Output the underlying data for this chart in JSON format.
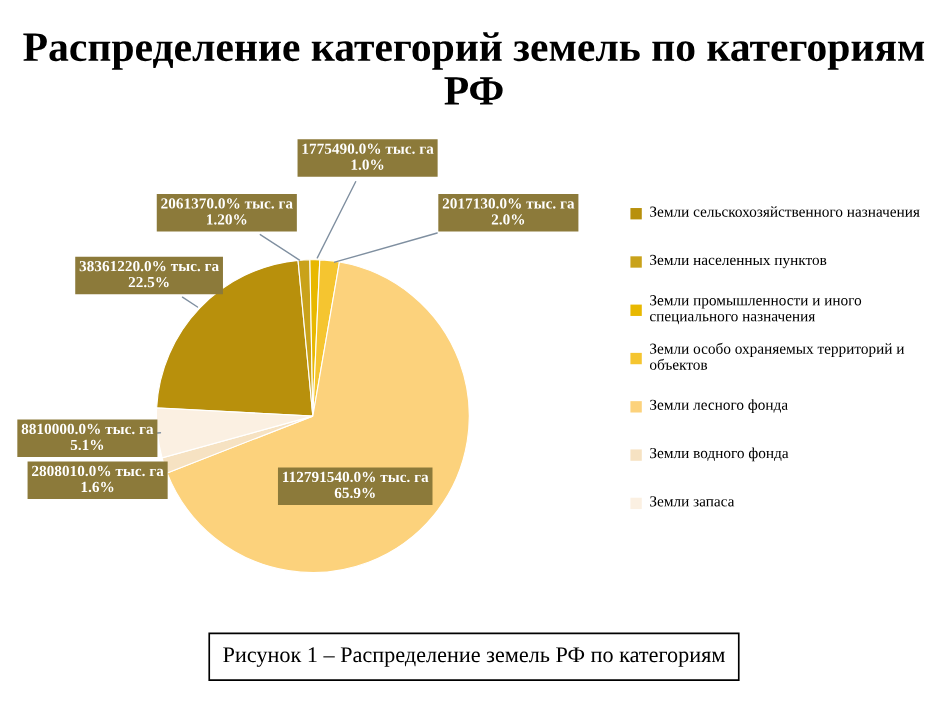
{
  "chart_data": {
    "type": "pie",
    "title": "Распределение категорий земель по категориям РФ",
    "categories": [
      "Земли сельскохозяйственного назначения",
      "Земли населенных пунктов",
      "Земли промышленности и иного специального назначения",
      "Земли особо охраняемых территорий и объектов",
      "Земли лесного фонда",
      "Земли водного фонда",
      "Земли запаса"
    ],
    "values": [
      22.5,
      1.2,
      1.0,
      2.0,
      65.9,
      1.6,
      5.1
    ],
    "colors": [
      "#b8900c",
      "#c9a21a",
      "#e8b800",
      "#f5c530",
      "#fcd27c",
      "#f6e2c2",
      "#fbf0e2"
    ],
    "value_labels": [
      "38361220.0% тыс. га\n22.5%",
      "2061370.0% тыс. га\n1.20%",
      "1775490.0% тыс. га\n1.0%",
      "2017130.0% тыс. га\n2.0%",
      "112791540.0% тыс. га\n65.9%",
      "2808010.0% тыс. га\n1.6%",
      "8810000.0% тыс. га\n5.1%"
    ],
    "legend": "right",
    "annotations": [
      "Рисунок 1 – Распределение земель РФ по категориям"
    ]
  }
}
